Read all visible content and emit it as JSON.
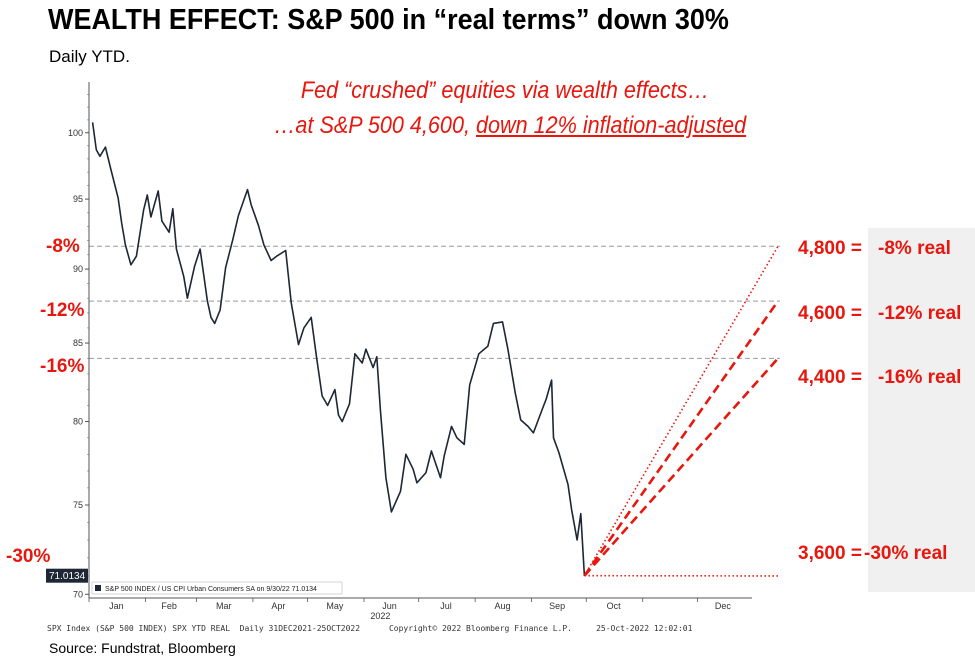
{
  "title": "WEALTH EFFECT: S&P 500 in “real terms” down 30%",
  "subtitle": "Daily YTD.",
  "annotation": {
    "line1": "Fed “crushed” equities via wealth effects…",
    "line2_prefix": "…at S&P 500 4,600, ",
    "line2_underlined": "down 12% inflation-adjusted"
  },
  "left_labels": [
    "-8%",
    "-12%",
    "-16%",
    "-30%"
  ],
  "right_labels": [
    {
      "level": "4,800 =",
      "pct": "-8% real"
    },
    {
      "level": "4,600 =",
      "pct": "-12% real"
    },
    {
      "level": "4,400 =",
      "pct": "-16% real"
    },
    {
      "level": "3,600 =",
      "pct": "-30% real"
    }
  ],
  "last_value_tag": "71.0134",
  "footer": "SPX Index (S&P 500 INDEX) SPX YTD REAL  Daily 31DEC2021-25OCT2022      Copyright© 2022 Bloomberg Finance L.P.     25-Oct-2022 12:02:01",
  "source": "Source: Fundstrat, Bloomberg",
  "colors": {
    "accent": "#e8160c",
    "line": "#1d2735",
    "grid": "#999999"
  },
  "chart_data": {
    "type": "line",
    "title": "WEALTH EFFECT: S&P 500 in “real terms” down 30%",
    "subtitle": "Daily YTD.",
    "log_scale": true,
    "ylim": [
      69.8,
      104
    ],
    "yticks": [
      100,
      95,
      90,
      85,
      80,
      75,
      70
    ],
    "x_year_label": "2022",
    "x_ticks": [
      "Jan",
      "Feb",
      "Mar",
      "Apr",
      "May",
      "Jun",
      "Jul",
      "Aug",
      "Sep",
      "Oct",
      "Dec"
    ],
    "legend": "S&P 500 INDEX / US CPI Urban Consumers SA on 9/30/22 71.0134",
    "series": [
      {
        "name": "S&P 500 INDEX / US CPI Urban Consumers SA",
        "x": [
          "2022-01-03",
          "2022-01-05",
          "2022-01-07",
          "2022-01-10",
          "2022-01-13",
          "2022-01-17",
          "2022-01-19",
          "2022-01-21",
          "2022-01-24",
          "2022-01-27",
          "2022-01-31",
          "2022-02-02",
          "2022-02-04",
          "2022-02-08",
          "2022-02-10",
          "2022-02-14",
          "2022-02-16",
          "2022-02-18",
          "2022-02-22",
          "2022-02-24",
          "2022-02-28",
          "2022-03-03",
          "2022-03-07",
          "2022-03-09",
          "2022-03-11",
          "2022-03-14",
          "2022-03-17",
          "2022-03-21",
          "2022-03-24",
          "2022-03-29",
          "2022-03-31",
          "2022-04-04",
          "2022-04-07",
          "2022-04-11",
          "2022-04-14",
          "2022-04-19",
          "2022-04-22",
          "2022-04-26",
          "2022-04-29",
          "2022-05-03",
          "2022-05-06",
          "2022-05-09",
          "2022-05-12",
          "2022-05-16",
          "2022-05-18",
          "2022-05-20",
          "2022-05-24",
          "2022-05-27",
          "2022-05-31",
          "2022-06-02",
          "2022-06-06",
          "2022-06-08",
          "2022-06-10",
          "2022-06-13",
          "2022-06-16",
          "2022-06-21",
          "2022-06-24",
          "2022-06-28",
          "2022-06-30",
          "2022-07-05",
          "2022-07-08",
          "2022-07-13",
          "2022-07-15",
          "2022-07-19",
          "2022-07-22",
          "2022-07-26",
          "2022-07-29",
          "2022-08-03",
          "2022-08-08",
          "2022-08-11",
          "2022-08-16",
          "2022-08-19",
          "2022-08-23",
          "2022-08-26",
          "2022-08-30",
          "2022-09-02",
          "2022-09-07",
          "2022-09-09",
          "2022-09-12",
          "2022-09-13",
          "2022-09-16",
          "2022-09-21",
          "2022-09-23",
          "2022-09-26",
          "2022-09-28",
          "2022-09-30"
        ],
        "values": [
          100.8,
          98.7,
          98.2,
          98.9,
          97.2,
          95.1,
          93.2,
          91.7,
          90.3,
          90.9,
          94.2,
          95.3,
          93.7,
          95.6,
          93.4,
          92.6,
          94.3,
          91.4,
          89.5,
          88.0,
          90.2,
          91.4,
          87.8,
          86.7,
          86.3,
          87.2,
          90.1,
          92.1,
          93.8,
          95.7,
          94.6,
          93.1,
          91.7,
          90.6,
          90.9,
          91.3,
          87.7,
          84.9,
          86.0,
          86.7,
          84.0,
          81.6,
          81.0,
          82.0,
          80.4,
          80.0,
          81.1,
          84.3,
          83.7,
          84.6,
          83.4,
          84.1,
          80.7,
          76.6,
          74.6,
          75.8,
          78.0,
          77.1,
          76.3,
          76.9,
          78.2,
          76.6,
          77.9,
          79.7,
          79.0,
          78.6,
          82.3,
          84.3,
          84.8,
          86.3,
          86.4,
          84.6,
          81.8,
          80.1,
          79.7,
          79.3,
          80.8,
          81.4,
          82.6,
          79.0,
          78.1,
          76.2,
          74.7,
          73.0,
          74.5,
          71.0
        ]
      }
    ],
    "projection": {
      "start_date": "2022-09-30",
      "end_date": "2022-12-30",
      "start_value": 71.0134,
      "targets": [
        {
          "level": "4,800",
          "real_change": "-8%",
          "value": 91.6
        },
        {
          "level": "4,600",
          "real_change": "-12%",
          "value": 87.8
        },
        {
          "level": "4,400",
          "real_change": "-16%",
          "value": 84.0
        },
        {
          "level": "3,600",
          "real_change": "-30%",
          "value": 71.0
        }
      ]
    }
  }
}
